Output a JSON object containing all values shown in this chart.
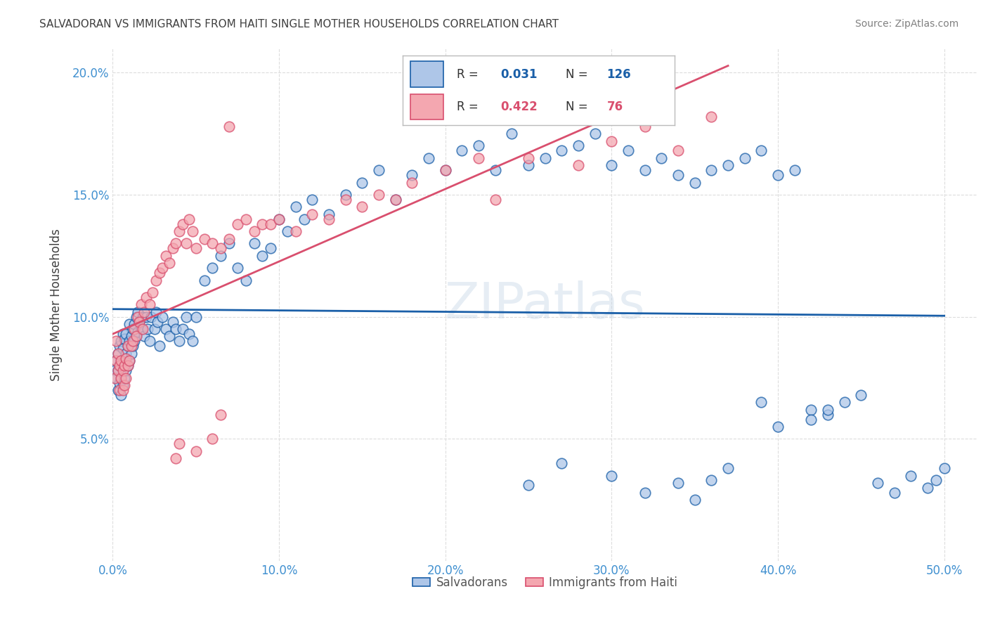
{
  "title": "SALVADORAN VS IMMIGRANTS FROM HAITI SINGLE MOTHER HOUSEHOLDS CORRELATION CHART",
  "source": "Source: ZipAtlas.com",
  "ylabel": "Single Mother Households",
  "xlim": [
    0.0,
    0.52
  ],
  "ylim": [
    0.0,
    0.21
  ],
  "xticks": [
    0.0,
    0.1,
    0.2,
    0.3,
    0.4,
    0.5
  ],
  "xticklabels": [
    "0.0%",
    "10.0%",
    "20.0%",
    "30.0%",
    "40.0%",
    "50.0%"
  ],
  "yticks": [
    0.05,
    0.1,
    0.15,
    0.2
  ],
  "yticklabels": [
    "5.0%",
    "10.0%",
    "15.0%",
    "20.0%"
  ],
  "r_salvadoran": 0.031,
  "n_salvadoran": 126,
  "r_haiti": 0.422,
  "n_haiti": 76,
  "color_salvadoran": "#aec6e8",
  "color_haiti": "#f4a7b0",
  "line_color_salvadoran": "#1a5fa8",
  "line_color_haiti": "#d94f6e",
  "watermark": "ZIPatlas",
  "background_color": "#ffffff",
  "grid_color": "#dddddd",
  "title_color": "#404040",
  "axis_label_color": "#404040",
  "tick_color": "#4090d0",
  "salvadoran_x": [
    0.001,
    0.002,
    0.002,
    0.003,
    0.003,
    0.003,
    0.004,
    0.004,
    0.004,
    0.005,
    0.005,
    0.005,
    0.005,
    0.006,
    0.006,
    0.006,
    0.006,
    0.007,
    0.007,
    0.007,
    0.008,
    0.008,
    0.008,
    0.009,
    0.009,
    0.01,
    0.01,
    0.01,
    0.011,
    0.011,
    0.012,
    0.012,
    0.013,
    0.013,
    0.014,
    0.014,
    0.015,
    0.015,
    0.016,
    0.017,
    0.018,
    0.019,
    0.02,
    0.021,
    0.022,
    0.023,
    0.025,
    0.026,
    0.027,
    0.028,
    0.03,
    0.032,
    0.034,
    0.036,
    0.038,
    0.04,
    0.042,
    0.044,
    0.046,
    0.048,
    0.05,
    0.055,
    0.06,
    0.065,
    0.07,
    0.075,
    0.08,
    0.085,
    0.09,
    0.095,
    0.1,
    0.105,
    0.11,
    0.115,
    0.12,
    0.13,
    0.14,
    0.15,
    0.16,
    0.17,
    0.18,
    0.19,
    0.2,
    0.21,
    0.22,
    0.23,
    0.24,
    0.25,
    0.26,
    0.27,
    0.28,
    0.29,
    0.3,
    0.31,
    0.32,
    0.33,
    0.34,
    0.35,
    0.36,
    0.37,
    0.38,
    0.39,
    0.4,
    0.41,
    0.42,
    0.43,
    0.44,
    0.45,
    0.46,
    0.47,
    0.48,
    0.49,
    0.495,
    0.5,
    0.25,
    0.27,
    0.3,
    0.32,
    0.34,
    0.35,
    0.36,
    0.37,
    0.39,
    0.4,
    0.42,
    0.43
  ],
  "salvadoran_y": [
    0.078,
    0.075,
    0.082,
    0.07,
    0.078,
    0.085,
    0.073,
    0.08,
    0.088,
    0.068,
    0.075,
    0.082,
    0.09,
    0.072,
    0.08,
    0.087,
    0.093,
    0.075,
    0.083,
    0.091,
    0.078,
    0.085,
    0.093,
    0.08,
    0.088,
    0.082,
    0.09,
    0.097,
    0.085,
    0.092,
    0.088,
    0.095,
    0.09,
    0.097,
    0.092,
    0.1,
    0.094,
    0.102,
    0.098,
    0.095,
    0.1,
    0.092,
    0.1,
    0.095,
    0.09,
    0.1,
    0.095,
    0.102,
    0.098,
    0.088,
    0.1,
    0.095,
    0.092,
    0.098,
    0.095,
    0.09,
    0.095,
    0.1,
    0.093,
    0.09,
    0.1,
    0.115,
    0.12,
    0.125,
    0.13,
    0.12,
    0.115,
    0.13,
    0.125,
    0.128,
    0.14,
    0.135,
    0.145,
    0.14,
    0.148,
    0.142,
    0.15,
    0.155,
    0.16,
    0.148,
    0.158,
    0.165,
    0.16,
    0.168,
    0.17,
    0.16,
    0.175,
    0.162,
    0.165,
    0.168,
    0.17,
    0.175,
    0.162,
    0.168,
    0.16,
    0.165,
    0.158,
    0.155,
    0.16,
    0.162,
    0.165,
    0.168,
    0.158,
    0.16,
    0.062,
    0.06,
    0.065,
    0.068,
    0.032,
    0.028,
    0.035,
    0.03,
    0.033,
    0.038,
    0.031,
    0.04,
    0.035,
    0.028,
    0.032,
    0.025,
    0.033,
    0.038,
    0.065,
    0.055,
    0.058,
    0.062
  ],
  "haiti_x": [
    0.001,
    0.002,
    0.002,
    0.003,
    0.003,
    0.004,
    0.004,
    0.005,
    0.005,
    0.006,
    0.006,
    0.007,
    0.007,
    0.008,
    0.008,
    0.009,
    0.009,
    0.01,
    0.011,
    0.012,
    0.013,
    0.014,
    0.015,
    0.016,
    0.017,
    0.018,
    0.019,
    0.02,
    0.022,
    0.024,
    0.026,
    0.028,
    0.03,
    0.032,
    0.034,
    0.036,
    0.038,
    0.04,
    0.042,
    0.044,
    0.046,
    0.048,
    0.05,
    0.055,
    0.06,
    0.065,
    0.07,
    0.075,
    0.08,
    0.085,
    0.09,
    0.095,
    0.1,
    0.11,
    0.12,
    0.13,
    0.14,
    0.15,
    0.16,
    0.17,
    0.18,
    0.2,
    0.22,
    0.23,
    0.25,
    0.28,
    0.3,
    0.32,
    0.34,
    0.36,
    0.04,
    0.05,
    0.038,
    0.06,
    0.065,
    0.07
  ],
  "haiti_y": [
    0.075,
    0.082,
    0.09,
    0.078,
    0.085,
    0.07,
    0.08,
    0.075,
    0.082,
    0.07,
    0.078,
    0.072,
    0.08,
    0.075,
    0.083,
    0.08,
    0.088,
    0.082,
    0.088,
    0.09,
    0.095,
    0.092,
    0.1,
    0.098,
    0.105,
    0.095,
    0.102,
    0.108,
    0.105,
    0.11,
    0.115,
    0.118,
    0.12,
    0.125,
    0.122,
    0.128,
    0.13,
    0.135,
    0.138,
    0.13,
    0.14,
    0.135,
    0.128,
    0.132,
    0.13,
    0.128,
    0.132,
    0.138,
    0.14,
    0.135,
    0.138,
    0.138,
    0.14,
    0.135,
    0.142,
    0.14,
    0.148,
    0.145,
    0.15,
    0.148,
    0.155,
    0.16,
    0.165,
    0.148,
    0.165,
    0.162,
    0.172,
    0.178,
    0.168,
    0.182,
    0.048,
    0.045,
    0.042,
    0.05,
    0.06,
    0.178
  ]
}
